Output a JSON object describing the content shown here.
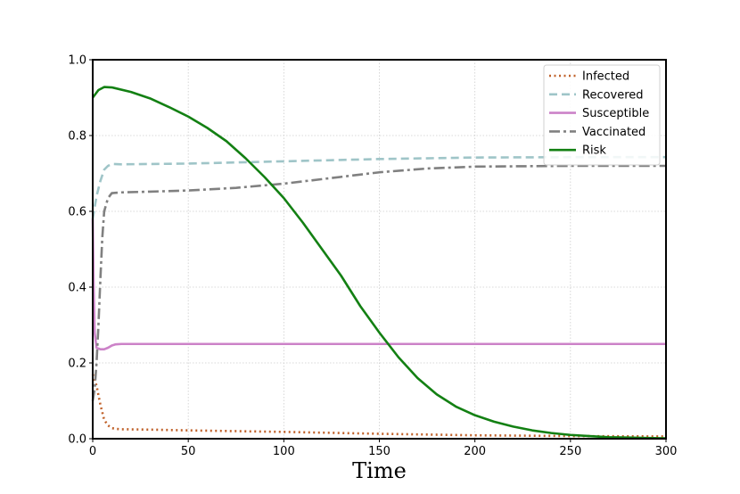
{
  "chart_data": {
    "type": "line",
    "title": "",
    "xlabel": "Time",
    "ylabel": "",
    "xlim": [
      0,
      300
    ],
    "ylim": [
      0,
      1.0
    ],
    "xticks": [
      "0",
      "50",
      "100",
      "150",
      "200",
      "250",
      "300"
    ],
    "yticks": [
      "0.0",
      "0.2",
      "0.4",
      "0.6",
      "0.8",
      "1.0"
    ],
    "grid": true,
    "legend_position": "top-right",
    "series": [
      {
        "name": "Infected",
        "color": "#c0622b",
        "dash": "dotted",
        "points": [
          [
            0,
            0.17
          ],
          [
            2,
            0.14
          ],
          [
            4,
            0.09
          ],
          [
            6,
            0.05
          ],
          [
            8,
            0.035
          ],
          [
            10,
            0.028
          ],
          [
            12,
            0.026
          ],
          [
            15,
            0.025
          ],
          [
            30,
            0.024
          ],
          [
            50,
            0.022
          ],
          [
            100,
            0.018
          ],
          [
            150,
            0.013
          ],
          [
            200,
            0.009
          ],
          [
            250,
            0.007
          ],
          [
            300,
            0.006
          ]
        ]
      },
      {
        "name": "Recovered",
        "color": "#9fc5c8",
        "dash": "dashed",
        "points": [
          [
            0,
            0.58
          ],
          [
            1,
            0.61
          ],
          [
            2,
            0.64
          ],
          [
            4,
            0.68
          ],
          [
            6,
            0.71
          ],
          [
            8,
            0.72
          ],
          [
            10,
            0.725
          ],
          [
            15,
            0.724
          ],
          [
            50,
            0.726
          ],
          [
            100,
            0.732
          ],
          [
            150,
            0.738
          ],
          [
            200,
            0.742
          ],
          [
            250,
            0.743
          ],
          [
            300,
            0.743
          ]
        ]
      },
      {
        "name": "Susceptible",
        "color": "#cc82c8",
        "dash": "solid",
        "points": [
          [
            0,
            0.58
          ],
          [
            0.5,
            0.4
          ],
          [
            1,
            0.28
          ],
          [
            2,
            0.24
          ],
          [
            4,
            0.236
          ],
          [
            6,
            0.236
          ],
          [
            8,
            0.24
          ],
          [
            10,
            0.246
          ],
          [
            12,
            0.249
          ],
          [
            15,
            0.25
          ],
          [
            50,
            0.25
          ],
          [
            100,
            0.25
          ],
          [
            150,
            0.25
          ],
          [
            200,
            0.25
          ],
          [
            250,
            0.25
          ],
          [
            300,
            0.25
          ]
        ]
      },
      {
        "name": "Vaccinated",
        "color": "#808080",
        "dash": "dashdot",
        "points": [
          [
            0,
            0.1
          ],
          [
            1,
            0.13
          ],
          [
            2,
            0.2
          ],
          [
            3,
            0.3
          ],
          [
            4,
            0.42
          ],
          [
            5,
            0.53
          ],
          [
            6,
            0.6
          ],
          [
            8,
            0.635
          ],
          [
            10,
            0.648
          ],
          [
            15,
            0.65
          ],
          [
            30,
            0.652
          ],
          [
            50,
            0.655
          ],
          [
            75,
            0.662
          ],
          [
            100,
            0.673
          ],
          [
            125,
            0.688
          ],
          [
            150,
            0.703
          ],
          [
            175,
            0.713
          ],
          [
            200,
            0.718
          ],
          [
            250,
            0.72
          ],
          [
            300,
            0.72
          ]
        ]
      },
      {
        "name": "Risk",
        "color": "#138013",
        "dash": "solid",
        "points": [
          [
            0,
            0.9
          ],
          [
            3,
            0.92
          ],
          [
            6,
            0.928
          ],
          [
            10,
            0.927
          ],
          [
            20,
            0.915
          ],
          [
            30,
            0.898
          ],
          [
            40,
            0.875
          ],
          [
            50,
            0.85
          ],
          [
            60,
            0.82
          ],
          [
            70,
            0.785
          ],
          [
            80,
            0.74
          ],
          [
            90,
            0.69
          ],
          [
            100,
            0.635
          ],
          [
            110,
            0.57
          ],
          [
            120,
            0.5
          ],
          [
            130,
            0.43
          ],
          [
            140,
            0.35
          ],
          [
            150,
            0.28
          ],
          [
            160,
            0.215
          ],
          [
            170,
            0.16
          ],
          [
            180,
            0.117
          ],
          [
            190,
            0.085
          ],
          [
            200,
            0.062
          ],
          [
            210,
            0.045
          ],
          [
            220,
            0.032
          ],
          [
            230,
            0.022
          ],
          [
            240,
            0.015
          ],
          [
            250,
            0.01
          ],
          [
            260,
            0.007
          ],
          [
            270,
            0.004
          ],
          [
            280,
            0.003
          ],
          [
            290,
            0.002
          ],
          [
            300,
            0.001
          ]
        ]
      }
    ]
  }
}
